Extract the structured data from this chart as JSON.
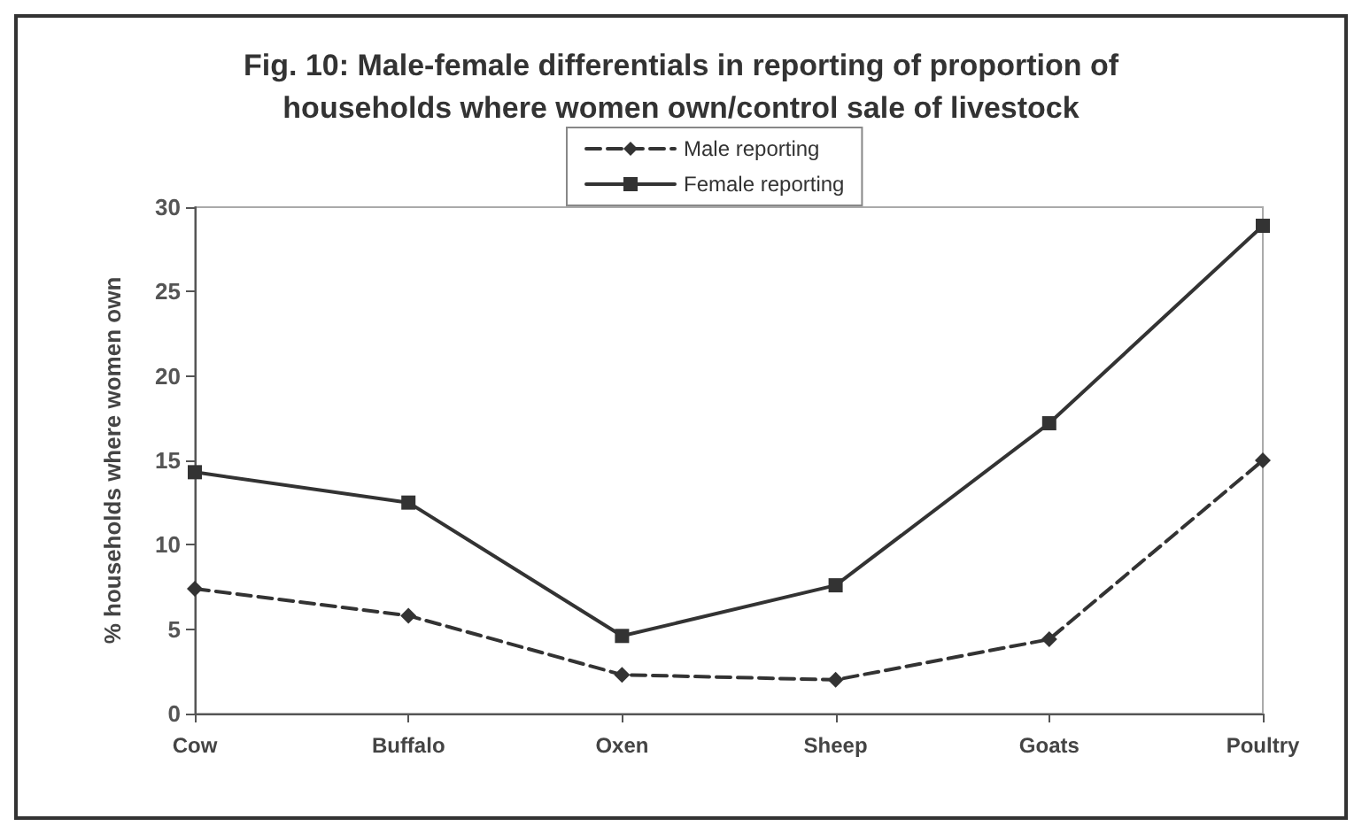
{
  "chart_data": {
    "type": "line",
    "title": "Fig. 10: Male-female differentials in reporting of proportion of\nhouseholds where women own/control sale of livestock",
    "ylabel": "% households where women own",
    "categories": [
      "Cow",
      "Buffalo",
      "Oxen",
      "Sheep",
      "Goats",
      "Poultry"
    ],
    "series": [
      {
        "name": "Male reporting",
        "color": "#333333",
        "line_style": "dashed",
        "marker": "diamond",
        "values": [
          7.4,
          5.8,
          2.3,
          2.0,
          4.4,
          15.0
        ]
      },
      {
        "name": "Female reporting",
        "color": "#333333",
        "line_style": "solid",
        "marker": "square",
        "values": [
          14.3,
          12.5,
          4.6,
          7.6,
          17.2,
          28.9
        ]
      }
    ],
    "ylim": [
      0,
      30
    ],
    "yticks": [
      0,
      5,
      10,
      15,
      20,
      25,
      30
    ],
    "grid": false,
    "legend": "top"
  }
}
